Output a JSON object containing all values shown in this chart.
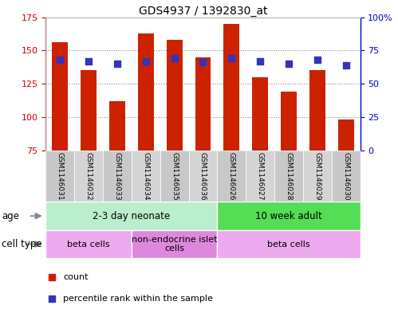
{
  "title": "GDS4937 / 1392830_at",
  "samples": [
    "GSM1146031",
    "GSM1146032",
    "GSM1146033",
    "GSM1146034",
    "GSM1146035",
    "GSM1146036",
    "GSM1146026",
    "GSM1146027",
    "GSM1146028",
    "GSM1146029",
    "GSM1146030"
  ],
  "counts": [
    156,
    135,
    112,
    163,
    158,
    145,
    170,
    130,
    119,
    135,
    98
  ],
  "percentiles": [
    68,
    67,
    65,
    67,
    69,
    66,
    69,
    67,
    65,
    68,
    64
  ],
  "ylim_left": [
    75,
    175
  ],
  "ylim_right": [
    0,
    100
  ],
  "yticks_left": [
    75,
    100,
    125,
    150,
    175
  ],
  "yticks_right": [
    0,
    25,
    50,
    75,
    100
  ],
  "ytick_labels_right": [
    "0",
    "25",
    "50",
    "75",
    "100%"
  ],
  "bar_color": "#cc2200",
  "dot_color": "#3333bb",
  "bar_width": 0.55,
  "age_groups": [
    {
      "label": "2-3 day neonate",
      "start": 0,
      "end": 6,
      "color": "#bbeecc"
    },
    {
      "label": "10 week adult",
      "start": 6,
      "end": 11,
      "color": "#55dd55"
    }
  ],
  "cell_type_groups": [
    {
      "label": "beta cells",
      "start": 0,
      "end": 3,
      "color": "#eeaaee"
    },
    {
      "label": "non-endocrine islet\ncells",
      "start": 3,
      "end": 6,
      "color": "#dd88dd"
    },
    {
      "label": "beta cells",
      "start": 6,
      "end": 11,
      "color": "#eeaaee"
    }
  ],
  "legend_items": [
    {
      "label": "count",
      "color": "#cc2200"
    },
    {
      "label": "percentile rank within the sample",
      "color": "#3333bb"
    }
  ],
  "background_color": "#ffffff",
  "grid_color": "#888888",
  "sample_box_color": "#cccccc",
  "left_axis_color": "#cc0000",
  "right_axis_color": "#0000cc"
}
